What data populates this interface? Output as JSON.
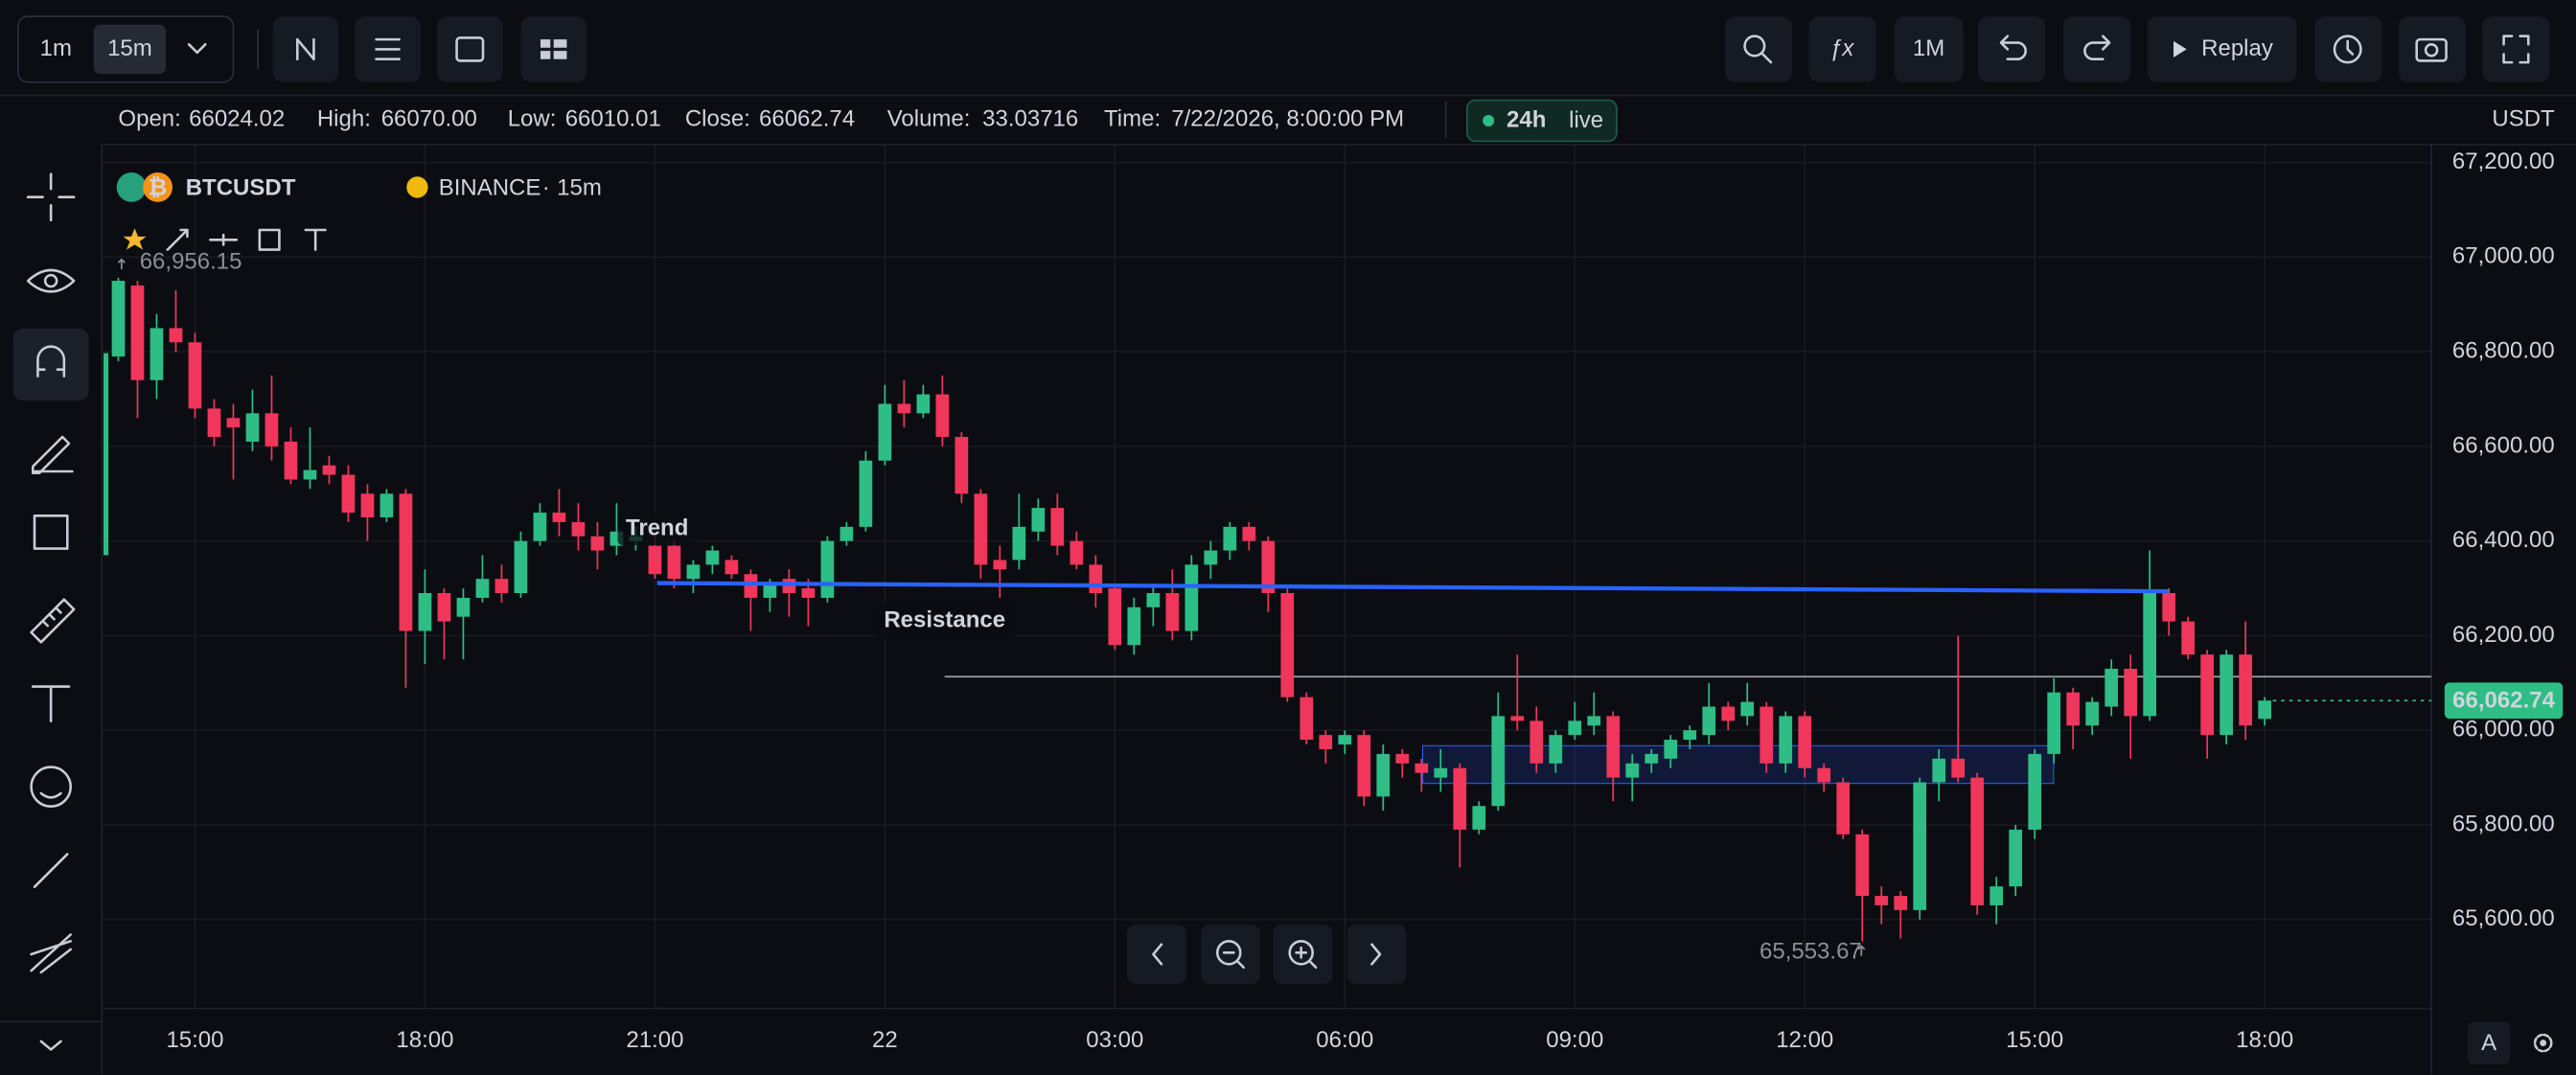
{
  "toolbar": {
    "intervals": [
      "1m",
      "15m"
    ],
    "range": "1M",
    "replay": "Replay"
  },
  "ohlc": {
    "open_label": "Open:",
    "open": "66024.02",
    "high_label": "High:",
    "high": "66070.00",
    "low_label": "Low:",
    "low": "66010.01",
    "close_label": "Close:",
    "close": "66062.74",
    "volume_label": "Volume:",
    "volume": "33.03716",
    "time_label": "Time:",
    "time": "7/22/2026, 8:00:00 PM"
  },
  "status": {
    "period": "24h",
    "state": "live"
  },
  "currency": "USDT",
  "footer": {
    "scale_button": "A"
  },
  "chart_data": {
    "type": "candlestick",
    "symbol": "BTCUSDT",
    "exchange": "BINANCE",
    "separator": "·",
    "interval": "15m",
    "up_color": "#2ebd85",
    "down_color": "#f0365a",
    "grid": true,
    "open": [
      66790,
      66940,
      66740,
      66850,
      66820,
      66680,
      66660,
      66610,
      66670,
      66610,
      66530,
      66560,
      66540,
      66500,
      66450,
      66500,
      66210,
      66290,
      66240,
      66280,
      66320,
      66290,
      66400,
      66460,
      66440,
      66410,
      66390,
      66400,
      66390,
      66390,
      66320,
      66350,
      66360,
      66330,
      66280,
      66320,
      66300,
      66280,
      66400,
      66430,
      66570,
      66690,
      66670,
      66710,
      66620,
      66500,
      66360,
      66360,
      66420,
      66470,
      66400,
      66350,
      66300,
      66180,
      66260,
      66290,
      66210,
      66350,
      66380,
      66430,
      66400,
      66290,
      66070,
      65990,
      65970,
      65990,
      65860,
      65950,
      65930,
      65900,
      65920,
      65790,
      65840,
      66030,
      66020,
      65930,
      65990,
      66010,
      66030,
      65900,
      65930,
      65940,
      65980,
      65990,
      66050,
      66030,
      66050,
      65930,
      66030,
      65920,
      65890,
      65780,
      65650,
      65650,
      65620,
      65890,
      65940,
      65900,
      65630,
      65670,
      65790,
      65950,
      66080,
      66010,
      66050,
      66130,
      66030,
      66290,
      66230,
      66160,
      65990,
      66160,
      66024.02
    ],
    "high": [
      66956.15,
      66950,
      66880,
      66930,
      66840,
      66700,
      66690,
      66720,
      66750,
      66640,
      66640,
      66580,
      66560,
      66520,
      66510,
      66510,
      66340,
      66300,
      66300,
      66370,
      66350,
      66420,
      66480,
      66510,
      66480,
      66440,
      66480,
      66430,
      66410,
      66400,
      66360,
      66390,
      66370,
      66340,
      66320,
      66340,
      66320,
      66410,
      66440,
      66590,
      66730,
      66740,
      66730,
      66750,
      66630,
      66510,
      66390,
      66500,
      66490,
      66500,
      66420,
      66370,
      66310,
      66280,
      66310,
      66340,
      66370,
      66400,
      66440,
      66440,
      66410,
      66300,
      66080,
      66000,
      66000,
      66000,
      65970,
      65960,
      65940,
      65960,
      65930,
      65850,
      66080,
      66160,
      66050,
      66000,
      66060,
      66080,
      66040,
      65950,
      65960,
      65990,
      66010,
      66100,
      66060,
      66100,
      66060,
      66040,
      66040,
      65930,
      65900,
      65790,
      65670,
      65660,
      65900,
      65960,
      66200,
      65910,
      65690,
      65800,
      65960,
      66110,
      66090,
      66070,
      66150,
      66160,
      66380,
      66300,
      66240,
      66170,
      66170,
      66230,
      66070
    ],
    "low": [
      66780,
      66660,
      66700,
      66800,
      66660,
      66600,
      66530,
      66590,
      66570,
      66520,
      66510,
      66520,
      66440,
      66400,
      66440,
      66090,
      66140,
      66150,
      66150,
      66270,
      66270,
      66280,
      66390,
      66410,
      66380,
      66340,
      66370,
      66380,
      66320,
      66300,
      66290,
      66330,
      66320,
      66210,
      66250,
      66240,
      66220,
      66270,
      66390,
      66420,
      66560,
      66640,
      66660,
      66600,
      66480,
      66320,
      66280,
      66340,
      66400,
      66370,
      66340,
      66260,
      66170,
      66160,
      66220,
      66190,
      66190,
      66320,
      66360,
      66380,
      66250,
      66060,
      65970,
      65930,
      65950,
      65840,
      65830,
      65900,
      65870,
      65870,
      65710,
      65780,
      65830,
      66000,
      65910,
      65910,
      65980,
      65990,
      65850,
      65850,
      65910,
      65920,
      65960,
      65970,
      66000,
      66010,
      65910,
      65910,
      65900,
      65870,
      65770,
      65553.67,
      65590,
      65560,
      65600,
      65850,
      65890,
      65610,
      65590,
      65650,
      65770,
      65930,
      65960,
      65990,
      66030,
      65940,
      66020,
      66200,
      66150,
      65940,
      65970,
      65980,
      66010.01
    ],
    "close": [
      66950,
      66740,
      66850,
      66820,
      66680,
      66620,
      66640,
      66670,
      66600,
      66530,
      66550,
      66540,
      66460,
      66450,
      66500,
      66210,
      66290,
      66230,
      66280,
      66320,
      66290,
      66400,
      66460,
      66440,
      66410,
      66380,
      66420,
      66410,
      66330,
      66320,
      66350,
      66380,
      66330,
      66280,
      66310,
      66290,
      66280,
      66400,
      66430,
      66570,
      66690,
      66670,
      66710,
      66620,
      66500,
      66350,
      66340,
      66430,
      66470,
      66390,
      66350,
      66290,
      66180,
      66260,
      66290,
      66210,
      66350,
      66380,
      66430,
      66400,
      66290,
      66070,
      65980,
      65960,
      65990,
      65860,
      65950,
      65930,
      65910,
      65920,
      65790,
      65840,
      66030,
      66020,
      65930,
      65990,
      66020,
      66030,
      65900,
      65930,
      65950,
      65980,
      66000,
      66050,
      66020,
      66060,
      65930,
      66030,
      65920,
      65890,
      65780,
      65650,
      65630,
      65620,
      65890,
      65940,
      65900,
      65630,
      65670,
      65790,
      65950,
      66080,
      66010,
      66060,
      66130,
      66030,
      66290,
      66230,
      66160,
      65990,
      66160,
      66010,
      66062.74
    ],
    "xlim": [
      -0.86,
      120.7
    ],
    "xticks": [
      {
        "value": 4,
        "label": "15:00"
      },
      {
        "value": 16,
        "label": "18:00"
      },
      {
        "value": 28,
        "label": "21:00"
      },
      {
        "value": 40,
        "label": "22"
      },
      {
        "value": 52,
        "label": "03:00"
      },
      {
        "value": 64,
        "label": "06:00"
      },
      {
        "value": 76,
        "label": "09:00"
      },
      {
        "value": 88,
        "label": "12:00"
      },
      {
        "value": 100,
        "label": "15:00"
      },
      {
        "value": 112,
        "label": "18:00"
      }
    ],
    "ylim": [
      65412,
      67238
    ],
    "yticks": [
      {
        "value": 65600,
        "label": "65,600.00"
      },
      {
        "value": 65800,
        "label": "65,800.00"
      },
      {
        "value": 66000,
        "label": "66,000.00"
      },
      {
        "value": 66200,
        "label": "66,200.00"
      },
      {
        "value": 66400,
        "label": "66,400.00"
      },
      {
        "value": 66600,
        "label": "66,600.00"
      },
      {
        "value": 66800,
        "label": "66,800.00"
      },
      {
        "value": 67000,
        "label": "67,000.00"
      },
      {
        "value": 67200,
        "label": "67,200.00"
      }
    ],
    "last_price": {
      "value": 66062.74,
      "label": "66,062.74"
    },
    "high_marker": "66,956.15",
    "low_marker": "65,553.67",
    "annotations": [
      "Trend",
      "Resistance"
    ]
  }
}
